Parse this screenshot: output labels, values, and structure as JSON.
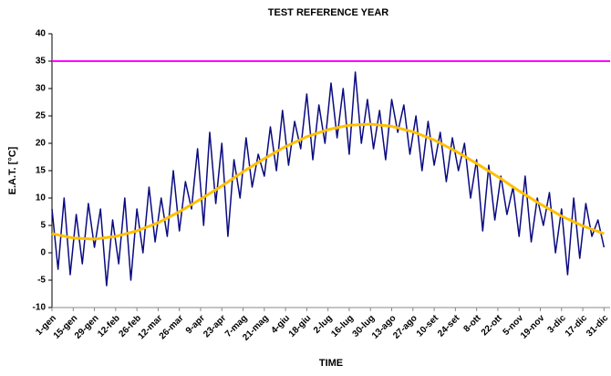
{
  "chart_data": {
    "type": "line",
    "title": "TEST REFERENCE YEAR",
    "xlabel": "TIME",
    "ylabel": "E.A.T. [°C]",
    "xlim": [
      0,
      368
    ],
    "ylim": [
      -10,
      40
    ],
    "yticks": [
      -10,
      -5,
      0,
      5,
      10,
      15,
      20,
      25,
      30,
      35,
      40
    ],
    "xticks": [
      {
        "value": 0,
        "label": "1-gen"
      },
      {
        "value": 14,
        "label": "15-gen"
      },
      {
        "value": 28,
        "label": "29-gen"
      },
      {
        "value": 42,
        "label": "12-feb"
      },
      {
        "value": 56,
        "label": "26-feb"
      },
      {
        "value": 70,
        "label": "12-mar"
      },
      {
        "value": 84,
        "label": "26-mar"
      },
      {
        "value": 98,
        "label": "9-apr"
      },
      {
        "value": 112,
        "label": "23-apr"
      },
      {
        "value": 126,
        "label": "7-mag"
      },
      {
        "value": 140,
        "label": "21-mag"
      },
      {
        "value": 154,
        "label": "4-giu"
      },
      {
        "value": 168,
        "label": "18-giu"
      },
      {
        "value": 182,
        "label": "2-lug"
      },
      {
        "value": 196,
        "label": "16-lug"
      },
      {
        "value": 210,
        "label": "30-lug"
      },
      {
        "value": 224,
        "label": "13-ago"
      },
      {
        "value": 238,
        "label": "27-ago"
      },
      {
        "value": 252,
        "label": "10-set"
      },
      {
        "value": 266,
        "label": "24-set"
      },
      {
        "value": 280,
        "label": "8-ott"
      },
      {
        "value": 294,
        "label": "22-ott"
      },
      {
        "value": 308,
        "label": "5-nov"
      },
      {
        "value": 322,
        "label": "19-nov"
      },
      {
        "value": 336,
        "label": "3-dic"
      },
      {
        "value": 350,
        "label": "17-dic"
      },
      {
        "value": 364,
        "label": "31-dic"
      }
    ],
    "grid": false,
    "series": [
      {
        "color": "#0a0a80",
        "width": 1.5,
        "x": [
          0,
          4,
          8,
          12,
          16,
          20,
          24,
          28,
          32,
          36,
          40,
          44,
          48,
          52,
          56,
          60,
          64,
          68,
          72,
          76,
          80,
          84,
          88,
          92,
          96,
          100,
          104,
          108,
          112,
          116,
          120,
          124,
          128,
          132,
          136,
          140,
          144,
          148,
          152,
          156,
          160,
          164,
          168,
          172,
          176,
          180,
          184,
          188,
          192,
          196,
          200,
          204,
          208,
          212,
          216,
          220,
          224,
          228,
          232,
          236,
          240,
          244,
          248,
          252,
          256,
          260,
          264,
          268,
          272,
          276,
          280,
          284,
          288,
          292,
          296,
          300,
          304,
          308,
          312,
          316,
          320,
          324,
          328,
          332,
          336,
          340,
          344,
          348,
          352,
          356,
          360,
          364
        ],
        "values": [
          8,
          -3,
          10,
          -4,
          7,
          -2,
          9,
          1,
          8,
          -6,
          6,
          -2,
          10,
          -5,
          8,
          0,
          12,
          2,
          10,
          3,
          15,
          4,
          13,
          8,
          19,
          5,
          22,
          9,
          20,
          3,
          17,
          10,
          21,
          12,
          18,
          14,
          23,
          15,
          26,
          16,
          24,
          19,
          29,
          17,
          27,
          20,
          31,
          21,
          30,
          18,
          33,
          20,
          28,
          19,
          26,
          17,
          28,
          22,
          27,
          18,
          25,
          15,
          24,
          16,
          22,
          13,
          21,
          15,
          20,
          10,
          17,
          4,
          16,
          6,
          14,
          7,
          12,
          3,
          14,
          2,
          10,
          5,
          11,
          0,
          8,
          -4,
          10,
          -1,
          9,
          3,
          6,
          1
        ]
      },
      {
        "color": "#ffc000",
        "width": 3,
        "x": [
          0,
          14,
          28,
          42,
          56,
          70,
          84,
          98,
          112,
          126,
          140,
          154,
          168,
          182,
          196,
          210,
          224,
          238,
          252,
          266,
          280,
          294,
          308,
          322,
          336,
          350,
          364
        ],
        "values": [
          3.5,
          2.7,
          2.5,
          3.0,
          4.0,
          5.5,
          7.5,
          9.8,
          12.2,
          14.8,
          17.2,
          19.4,
          21.2,
          22.5,
          23.3,
          23.5,
          23.1,
          22.1,
          20.6,
          18.6,
          16.3,
          13.9,
          11.3,
          8.9,
          6.7,
          4.9,
          3.5
        ]
      },
      {
        "color": "#ff00ff",
        "width": 2,
        "x": [
          0,
          368
        ],
        "values": [
          35,
          35
        ]
      }
    ]
  }
}
